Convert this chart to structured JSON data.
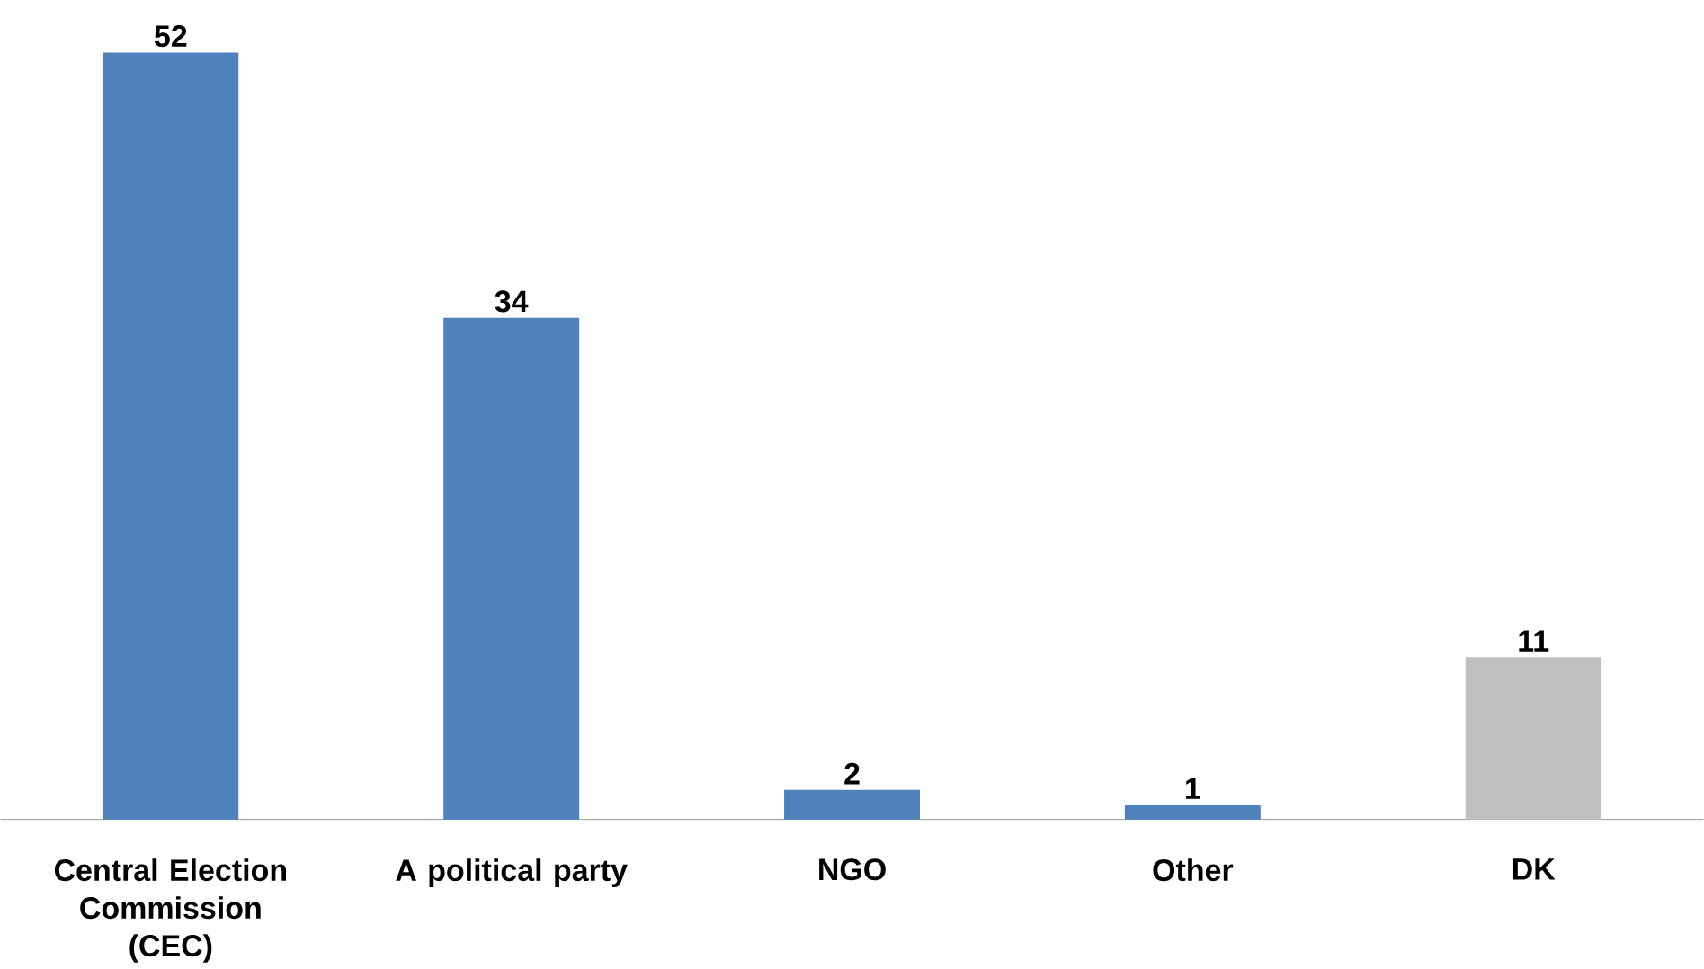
{
  "chart_data": {
    "type": "bar",
    "categories": [
      "Central Election Commission (CEC)",
      "A political party",
      "NGO",
      "Other",
      "DK"
    ],
    "values": [
      52,
      34,
      2,
      1,
      11
    ],
    "colors": [
      "#4f81bd",
      "#4f81bd",
      "#4f81bd",
      "#4f81bd",
      "#bfbfbf"
    ],
    "data_labels": true
  }
}
